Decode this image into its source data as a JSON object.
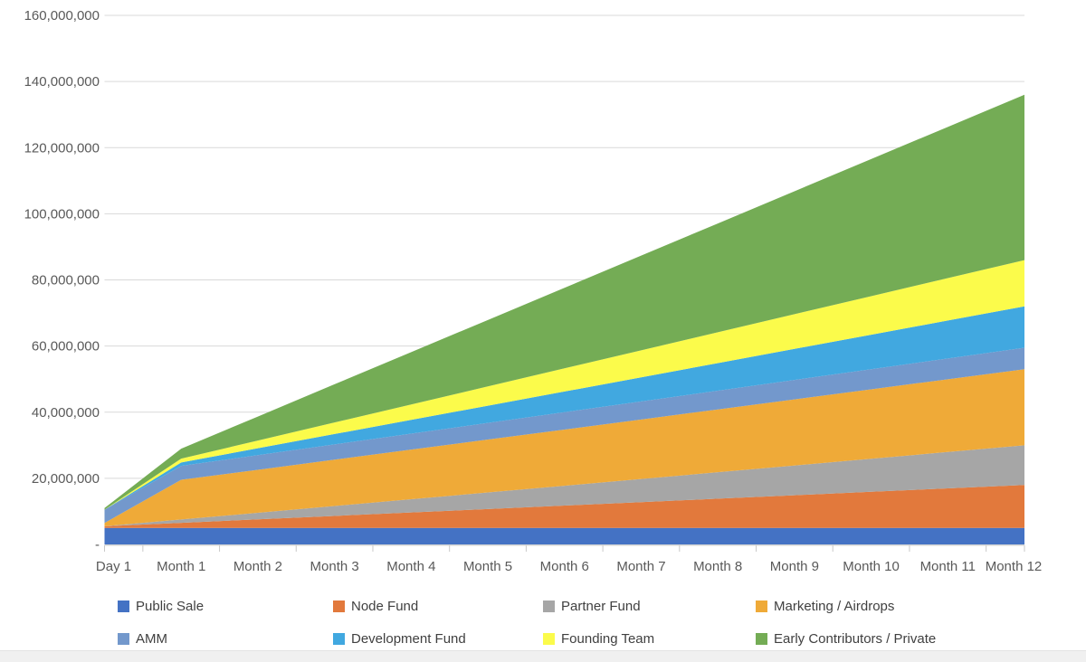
{
  "chart_data": {
    "type": "area",
    "stacked": true,
    "title": "",
    "xlabel": "",
    "ylabel": "",
    "grid": true,
    "legend_position": "bottom",
    "ylim": [
      0,
      160000000
    ],
    "y_tick_step": 20000000,
    "y_tick_labels": [
      "-",
      "20,000,000",
      "40,000,000",
      "60,000,000",
      "80,000,000",
      "100,000,000",
      "120,000,000",
      "140,000,000",
      "160,000,000"
    ],
    "categories": [
      "Day 1",
      "Month 1",
      "Month 2",
      "Month 3",
      "Month 4",
      "Month 5",
      "Month 6",
      "Month 7",
      "Month 8",
      "Month 9",
      "Month 10",
      "Month 11",
      "Month 12"
    ],
    "series": [
      {
        "name": "Public Sale",
        "color": "#4472C4",
        "values": [
          5000000,
          5000000,
          5000000,
          5000000,
          5000000,
          5000000,
          5000000,
          5000000,
          5000000,
          5000000,
          5000000,
          5000000,
          5000000
        ]
      },
      {
        "name": "Node Fund",
        "color": "#E2793C",
        "values": [
          500000,
          1540000,
          2580000,
          3630000,
          4670000,
          5710000,
          6750000,
          7790000,
          8830000,
          9880000,
          10920000,
          11960000,
          13000000
        ]
      },
      {
        "name": "Partner Fund",
        "color": "#A6A6A6",
        "values": [
          0,
          1000000,
          2000000,
          3000000,
          4000000,
          5000000,
          6000000,
          7000000,
          8000000,
          9000000,
          10000000,
          11000000,
          12000000
        ]
      },
      {
        "name": "Marketing / Airdrops",
        "color": "#EFAA38",
        "values": [
          1000000,
          12000000,
          13000000,
          14000000,
          15000000,
          16000000,
          17000000,
          18000000,
          19000000,
          20000000,
          21000000,
          22000000,
          23000000
        ]
      },
      {
        "name": "AMM",
        "color": "#7398CC",
        "values": [
          4000000,
          4210000,
          4420000,
          4630000,
          4830000,
          5040000,
          5250000,
          5460000,
          5670000,
          5880000,
          6080000,
          6290000,
          6500000
        ]
      },
      {
        "name": "Development Fund",
        "color": "#41A8E0",
        "values": [
          0,
          1040000,
          2080000,
          3130000,
          4170000,
          5210000,
          6250000,
          7290000,
          8330000,
          9380000,
          10420000,
          11460000,
          12500000
        ]
      },
      {
        "name": "Founding Team",
        "color": "#FBFB4B",
        "values": [
          0,
          1170000,
          2330000,
          3500000,
          4670000,
          5830000,
          7000000,
          8170000,
          9330000,
          10500000,
          11670000,
          12830000,
          14000000
        ]
      },
      {
        "name": "Early Contributors / Private",
        "color": "#74AC55",
        "values": [
          500000,
          3000000,
          7270000,
          11550000,
          15820000,
          20090000,
          24360000,
          28640000,
          32910000,
          37180000,
          41450000,
          45730000,
          50000000
        ]
      }
    ],
    "legend_rows": [
      [
        "Public Sale",
        "Node Fund",
        "Partner Fund",
        "Marketing / Airdrops"
      ],
      [
        "AMM",
        "Development Fund",
        "Founding Team",
        "Early Contributors / Private"
      ]
    ]
  },
  "style_colors": {
    "gridline": "#D9D9D9",
    "axis_line": "#D0D0D0",
    "tick": "#C9C9C9",
    "axis_label": "#595959"
  }
}
